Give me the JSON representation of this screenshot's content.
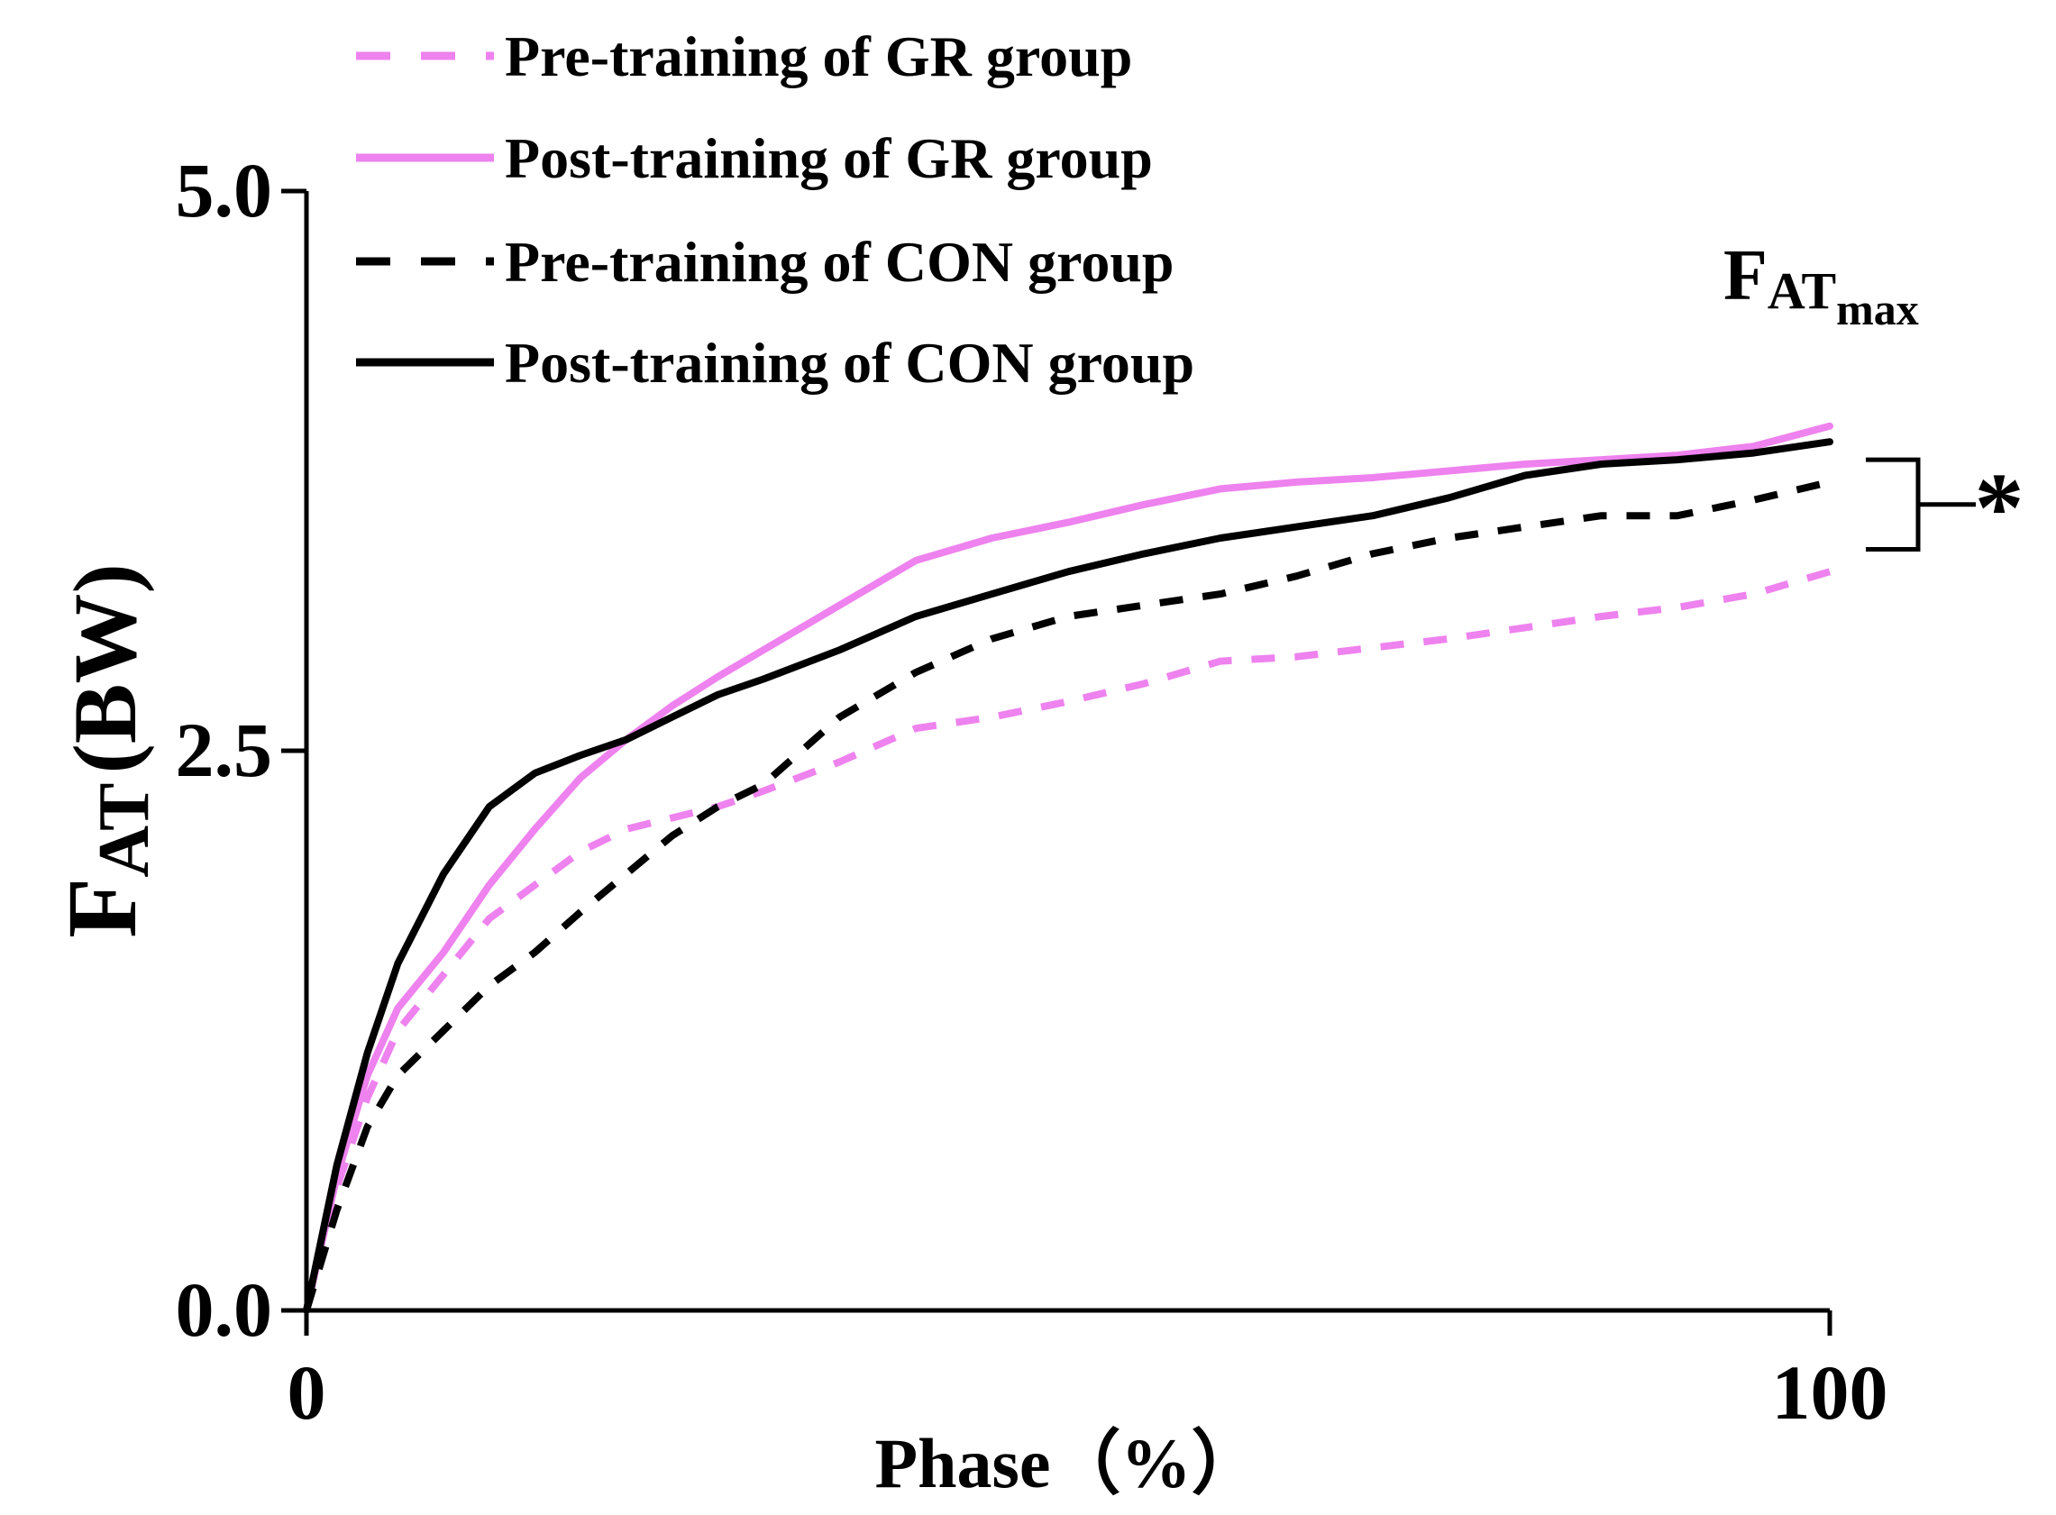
{
  "chart_data": {
    "type": "line",
    "xlabel": "Phase（%）",
    "ylabel": {
      "main": "F",
      "sub": "AT",
      "unit": "(BW)"
    },
    "xlim": [
      0,
      100
    ],
    "ylim": [
      0,
      5
    ],
    "xticks": [
      {
        "value": 0,
        "label": "0"
      },
      {
        "value": 100,
        "label": "100"
      }
    ],
    "yticks": [
      {
        "value": 0,
        "label": "0.0"
      },
      {
        "value": 2.5,
        "label": "2.5"
      },
      {
        "value": 5,
        "label": "5.0"
      }
    ],
    "legend_position": "top-left",
    "annotation": {
      "label_main": "F",
      "label_sub": "AT",
      "label_subsub": "max",
      "significance": "*",
      "bracket_y": [
        3.8,
        3.4
      ]
    },
    "series": [
      {
        "name": "Pre-training of GR group",
        "color": "#ee82ee",
        "style": "dashed",
        "x": [
          0,
          2,
          4,
          6,
          9,
          12,
          15,
          18,
          21,
          24,
          27,
          30,
          35,
          40,
          45,
          50,
          55,
          60,
          65,
          70,
          75,
          80,
          85,
          90,
          95,
          100
        ],
        "y": [
          0,
          0.55,
          0.95,
          1.25,
          1.5,
          1.75,
          1.9,
          2.05,
          2.15,
          2.2,
          2.25,
          2.32,
          2.45,
          2.6,
          2.65,
          2.72,
          2.8,
          2.9,
          2.92,
          2.96,
          3.0,
          3.05,
          3.1,
          3.14,
          3.2,
          3.3
        ]
      },
      {
        "name": "Post-training of GR group",
        "color": "#ee82ee",
        "style": "solid",
        "x": [
          0,
          2,
          4,
          6,
          9,
          12,
          15,
          18,
          21,
          24,
          27,
          30,
          35,
          40,
          45,
          50,
          55,
          60,
          65,
          70,
          75,
          80,
          85,
          90,
          95,
          100
        ],
        "y": [
          0,
          0.6,
          1.05,
          1.35,
          1.6,
          1.9,
          2.15,
          2.38,
          2.55,
          2.7,
          2.83,
          2.95,
          3.15,
          3.35,
          3.45,
          3.52,
          3.6,
          3.67,
          3.7,
          3.72,
          3.75,
          3.78,
          3.8,
          3.82,
          3.86,
          3.95
        ]
      },
      {
        "name": "Pre-training of CON group",
        "color": "#000000",
        "style": "dashed",
        "x": [
          0,
          2,
          4,
          6,
          9,
          12,
          15,
          18,
          21,
          24,
          27,
          30,
          35,
          40,
          45,
          50,
          55,
          60,
          65,
          70,
          75,
          80,
          85,
          90,
          95,
          100
        ],
        "y": [
          0,
          0.45,
          0.82,
          1.05,
          1.25,
          1.45,
          1.6,
          1.78,
          1.95,
          2.12,
          2.25,
          2.35,
          2.65,
          2.85,
          3.0,
          3.1,
          3.15,
          3.2,
          3.28,
          3.38,
          3.45,
          3.5,
          3.55,
          3.55,
          3.62,
          3.7
        ]
      },
      {
        "name": "Post-training of CON group",
        "color": "#000000",
        "style": "solid",
        "x": [
          0,
          2,
          4,
          6,
          9,
          12,
          15,
          18,
          21,
          24,
          27,
          30,
          35,
          40,
          45,
          50,
          55,
          60,
          65,
          70,
          75,
          80,
          85,
          90,
          95,
          100
        ],
        "y": [
          0,
          0.65,
          1.15,
          1.55,
          1.95,
          2.25,
          2.4,
          2.48,
          2.55,
          2.65,
          2.75,
          2.82,
          2.95,
          3.1,
          3.2,
          3.3,
          3.38,
          3.45,
          3.5,
          3.55,
          3.63,
          3.73,
          3.78,
          3.8,
          3.83,
          3.88
        ]
      }
    ]
  }
}
